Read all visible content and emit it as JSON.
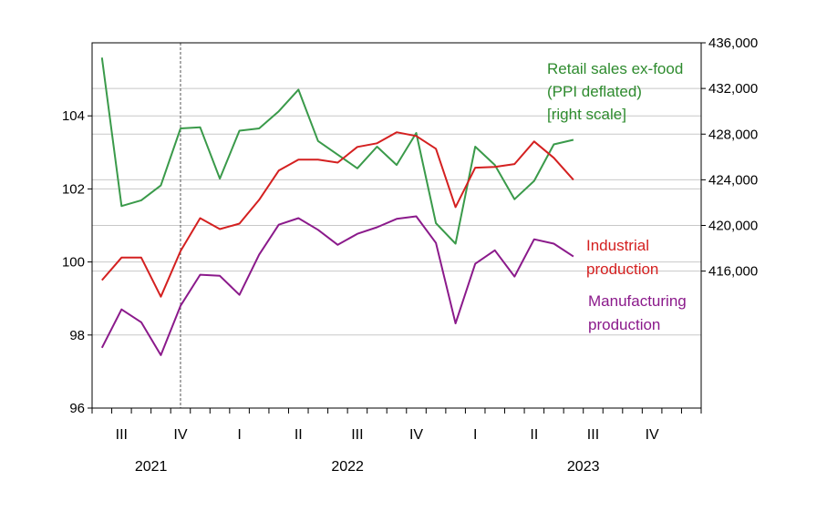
{
  "chart_data": {
    "type": "line",
    "x_axis": {
      "quarter_labels": [
        {
          "label": "III",
          "month": 1
        },
        {
          "label": "IV",
          "month": 4
        },
        {
          "label": "I",
          "month": 7
        },
        {
          "label": "II",
          "month": 10
        },
        {
          "label": "III",
          "month": 13
        },
        {
          "label": "IV",
          "month": 16
        },
        {
          "label": "I",
          "month": 19
        },
        {
          "label": "II",
          "month": 22
        },
        {
          "label": "III",
          "month": 25
        },
        {
          "label": "IV",
          "month": 28
        }
      ],
      "year_labels": [
        {
          "label": "2021",
          "month": 3
        },
        {
          "label": "2022",
          "month": 13
        },
        {
          "label": "2023",
          "month": 25
        }
      ],
      "first_month": "2021-06",
      "last_month": "2023-12",
      "vline_month": "2021-10"
    },
    "left_axis": {
      "ylim": [
        96,
        106
      ],
      "ticks": [
        96,
        98,
        100,
        102,
        104
      ],
      "tick_labels": [
        "96",
        "98",
        "100",
        "102",
        "104"
      ]
    },
    "right_axis": {
      "ylim": [
        404000,
        436000
      ],
      "ticks": [
        416000,
        420000,
        424000,
        428000,
        432000,
        436000
      ],
      "tick_labels": [
        "416,000",
        "420,000",
        "424,000",
        "428,000",
        "432,000",
        "436,000"
      ]
    },
    "grid": true,
    "series": [
      {
        "key": "retail",
        "name_lines": [
          "Retail sales ex-food",
          "(PPI deflated)",
          "[right scale]"
        ],
        "color": "#3a9a4a",
        "axis": "right",
        "values": [
          434700,
          421700,
          422200,
          423500,
          428500,
          428600,
          424100,
          428300,
          428500,
          430000,
          431900,
          427400,
          426200,
          425000,
          426900,
          425300,
          428100,
          420200,
          418400,
          426900,
          425300,
          422300,
          423900,
          427100,
          427500
        ]
      },
      {
        "key": "industrial",
        "name_lines": [
          "Industrial",
          "production"
        ],
        "color": "#d42020",
        "axis": "left",
        "values": [
          99.5,
          100.12,
          100.12,
          99.05,
          100.3,
          101.2,
          100.9,
          101.05,
          101.7,
          102.5,
          102.8,
          102.8,
          102.72,
          103.15,
          103.25,
          103.55,
          103.45,
          103.1,
          101.5,
          102.58,
          102.6,
          102.68,
          103.3,
          102.85,
          102.25
        ]
      },
      {
        "key": "manufacturing",
        "name_lines": [
          "Manufacturing",
          "production"
        ],
        "color": "#8b1a8b",
        "axis": "left",
        "values": [
          97.65,
          98.7,
          98.35,
          97.45,
          98.8,
          99.65,
          99.62,
          99.1,
          100.2,
          101.02,
          101.2,
          100.88,
          100.47,
          100.77,
          100.95,
          101.18,
          101.25,
          100.52,
          98.32,
          99.95,
          100.32,
          99.6,
          100.62,
          100.5,
          100.15
        ]
      }
    ]
  }
}
